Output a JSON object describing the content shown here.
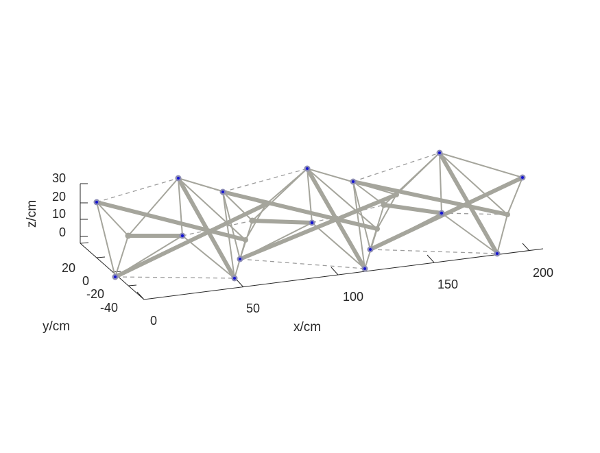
{
  "axes": {
    "xlabel": "x/cm",
    "ylabel": "y/cm",
    "zlabel": "z/cm",
    "x_ticks": [
      "0",
      "50",
      "100",
      "150",
      "200"
    ],
    "y_ticks": [
      "-40",
      "-20",
      "0",
      "20"
    ],
    "z_ticks": [
      "0",
      "10",
      "20",
      "30"
    ]
  },
  "colors": {
    "member": "#a5a59c",
    "dashed": "#9b9b9b",
    "axis": "#262626",
    "node_fill": "#1414d2",
    "node_ring": "#8c8cb4"
  }
}
